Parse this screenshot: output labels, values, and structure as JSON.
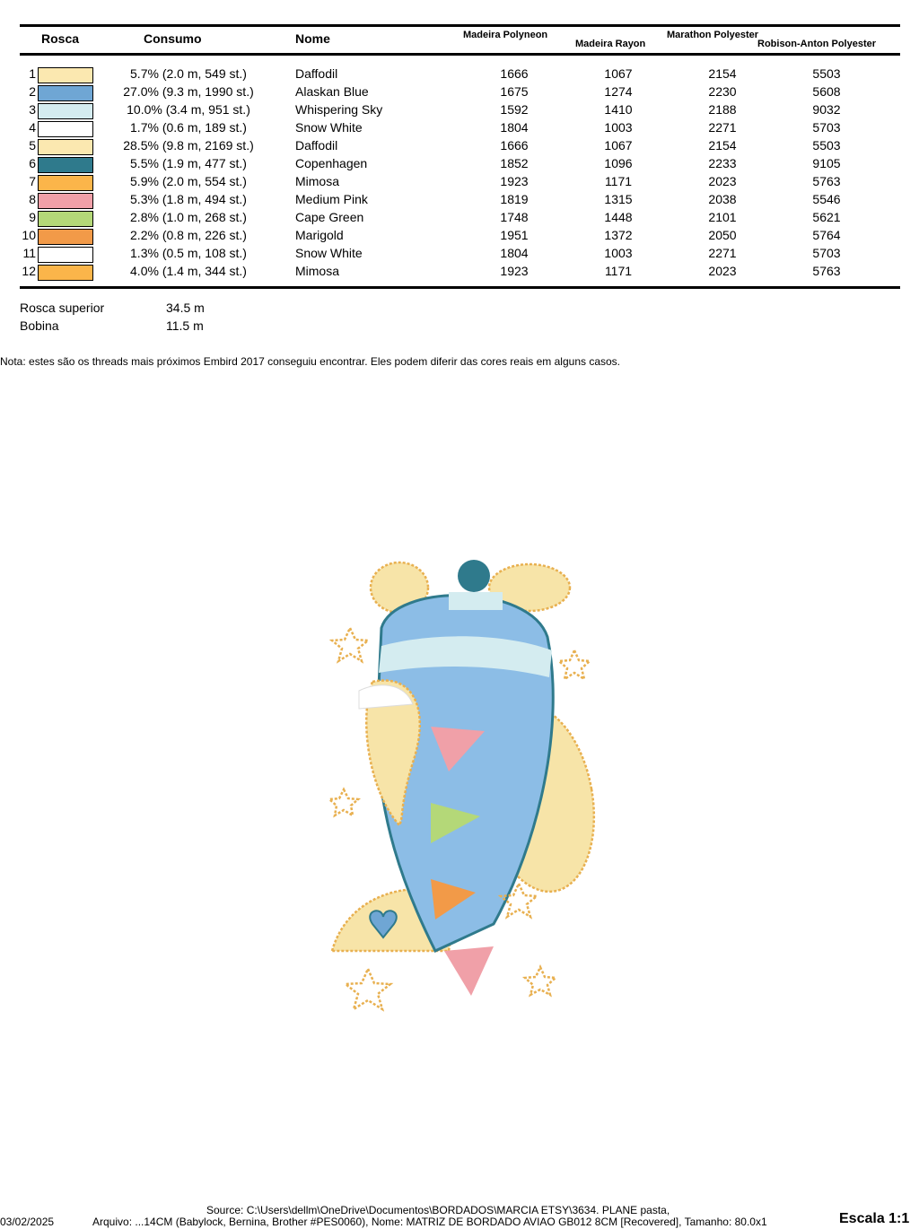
{
  "headers": {
    "rosca": "Rosca",
    "consumo": "Consumo",
    "nome": "Nome",
    "madeira_polyneon": "Madeira Polyneon",
    "madeira_rayon": "Madeira Rayon",
    "marathon": "Marathon Polyester",
    "robison": "Robison-Anton Polyester"
  },
  "rows": [
    {
      "n": "1",
      "color": "#fbe8b0",
      "consumo": "5.7% (2.0 m, 549 st.)",
      "nome": "Daffodil",
      "mp": "1666",
      "mr": "1067",
      "ma": "2154",
      "ra": "5503"
    },
    {
      "n": "2",
      "color": "#6fa6d4",
      "consumo": "27.0% (9.3 m, 1990 st.)",
      "nome": "Alaskan Blue",
      "mp": "1675",
      "mr": "1274",
      "ma": "2230",
      "ra": "5608"
    },
    {
      "n": "3",
      "color": "#d4ecf0",
      "consumo": "10.0% (3.4 m, 951 st.)",
      "nome": "Whispering Sky",
      "mp": "1592",
      "mr": "1410",
      "ma": "2188",
      "ra": "9032"
    },
    {
      "n": "4",
      "color": "#ffffff",
      "consumo": "1.7% (0.6 m, 189 st.)",
      "nome": "Snow White",
      "mp": "1804",
      "mr": "1003",
      "ma": "2271",
      "ra": "5703"
    },
    {
      "n": "5",
      "color": "#fbe8b0",
      "consumo": "28.5% (9.8 m, 2169 st.)",
      "nome": "Daffodil",
      "mp": "1666",
      "mr": "1067",
      "ma": "2154",
      "ra": "5503"
    },
    {
      "n": "6",
      "color": "#2f7a8c",
      "consumo": "5.5% (1.9 m, 477 st.)",
      "nome": "Copenhagen",
      "mp": "1852",
      "mr": "1096",
      "ma": "2233",
      "ra": "9105"
    },
    {
      "n": "7",
      "color": "#fbb54a",
      "consumo": "5.9% (2.0 m, 554 st.)",
      "nome": "Mimosa",
      "mp": "1923",
      "mr": "1171",
      "ma": "2023",
      "ra": "5763"
    },
    {
      "n": "8",
      "color": "#f0a0a8",
      "consumo": "5.3% (1.8 m, 494 st.)",
      "nome": "Medium Pink",
      "mp": "1819",
      "mr": "1315",
      "ma": "2038",
      "ra": "5546"
    },
    {
      "n": "9",
      "color": "#b4d878",
      "consumo": "2.8% (1.0 m, 268 st.)",
      "nome": "Cape Green",
      "mp": "1748",
      "mr": "1448",
      "ma": "2101",
      "ra": "5621"
    },
    {
      "n": "10",
      "color": "#f29a48",
      "consumo": "2.2% (0.8 m, 226 st.)",
      "nome": "Marigold",
      "mp": "1951",
      "mr": "1372",
      "ma": "2050",
      "ra": "5764"
    },
    {
      "n": "11",
      "color": "#ffffff",
      "consumo": "1.3% (0.5 m, 108 st.)",
      "nome": "Snow White",
      "mp": "1804",
      "mr": "1003",
      "ma": "2271",
      "ra": "5703"
    },
    {
      "n": "12",
      "color": "#fbb54a",
      "consumo": "4.0% (1.4 m, 344 st.)",
      "nome": "Mimosa",
      "mp": "1923",
      "mr": "1171",
      "ma": "2023",
      "ra": "5763"
    }
  ],
  "totals": {
    "top_label": "Rosca superior",
    "top_value": "34.5 m",
    "bobbin_label": "Bobina",
    "bobbin_value": "11.5 m"
  },
  "note": "Nota: estes são os threads mais próximos Embird 2017 conseguiu encontrar. Eles podem diferir das cores reais em alguns casos.",
  "footer": {
    "date": "03/02/2025",
    "source": "Source: C:\\Users\\dellm\\OneDrive\\Documentos\\BORDADOS\\MARCIA ETSY\\3634. PLANE pasta,",
    "file": "Arquivo: ...14CM (Babylock, Bernina, Brother #PES0060), Nome: MATRIZ DE BORDADO AVIAO GB012 8CM [Recovered], Tamanho: 80.0x1",
    "scale": "Escala 1:1"
  }
}
